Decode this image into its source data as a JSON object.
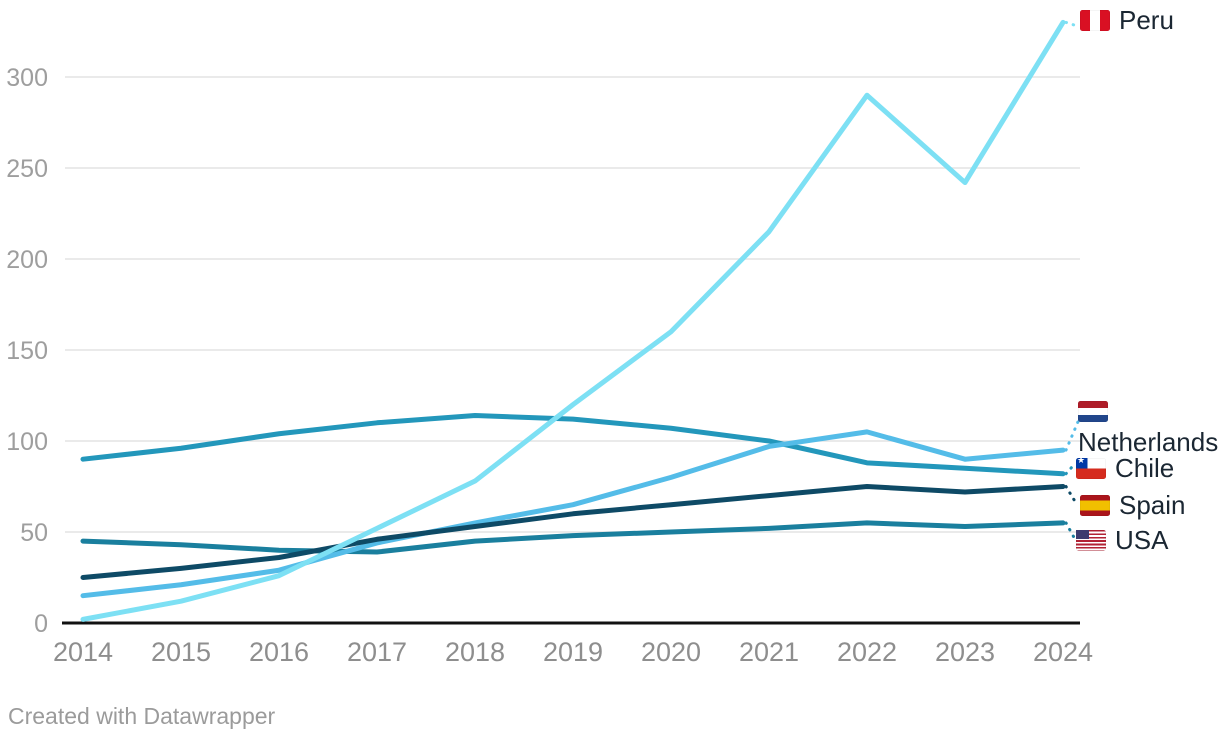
{
  "chart_data": {
    "type": "line",
    "title": "",
    "xlabel": "",
    "ylabel": "",
    "x": [
      2014,
      2015,
      2016,
      2017,
      2018,
      2019,
      2020,
      2021,
      2022,
      2023,
      2024
    ],
    "y_ticks": [
      0,
      50,
      100,
      150,
      200,
      250,
      300
    ],
    "ylim": [
      0,
      335
    ],
    "grid": "horizontal",
    "legend_position": "direct-labels-right",
    "series": [
      {
        "name": "Peru",
        "flag_icon": "peru-flag-icon",
        "flag_emoji": "🇵🇪",
        "color": "#7DE0F4",
        "values": [
          2,
          12,
          26,
          52,
          78,
          120,
          160,
          215,
          290,
          242,
          330
        ]
      },
      {
        "name": "Netherlands",
        "flag_icon": "netherlands-flag-icon",
        "flag_emoji": "🇳🇱",
        "color": "#54BCE8",
        "values": [
          15,
          21,
          29,
          44,
          55,
          65,
          80,
          97,
          105,
          90,
          95
        ]
      },
      {
        "name": "Chile",
        "flag_icon": "chile-flag-icon",
        "flag_emoji": "🇨🇱",
        "color": "#2397BB",
        "values": [
          90,
          96,
          104,
          110,
          114,
          112,
          107,
          100,
          88,
          85,
          82
        ]
      },
      {
        "name": "Spain",
        "flag_icon": "spain-flag-icon",
        "flag_emoji": "🇪🇸",
        "color": "#0E4A66",
        "values": [
          25,
          30,
          36,
          46,
          53,
          60,
          65,
          70,
          75,
          72,
          75
        ]
      },
      {
        "name": "USA",
        "flag_icon": "usa-flag-icon",
        "flag_emoji": "🇺🇸",
        "color": "#1A7F9E",
        "values": [
          45,
          43,
          40,
          39,
          45,
          48,
          50,
          52,
          55,
          53,
          55
        ]
      }
    ]
  },
  "axis_style": {
    "tick_color": "#9e9e9e",
    "x_label_color": "#8e8e8e",
    "gridline_color": "#e3e3e3",
    "baseline_color": "#111111"
  },
  "footer": {
    "credit": "Created with Datawrapper"
  }
}
